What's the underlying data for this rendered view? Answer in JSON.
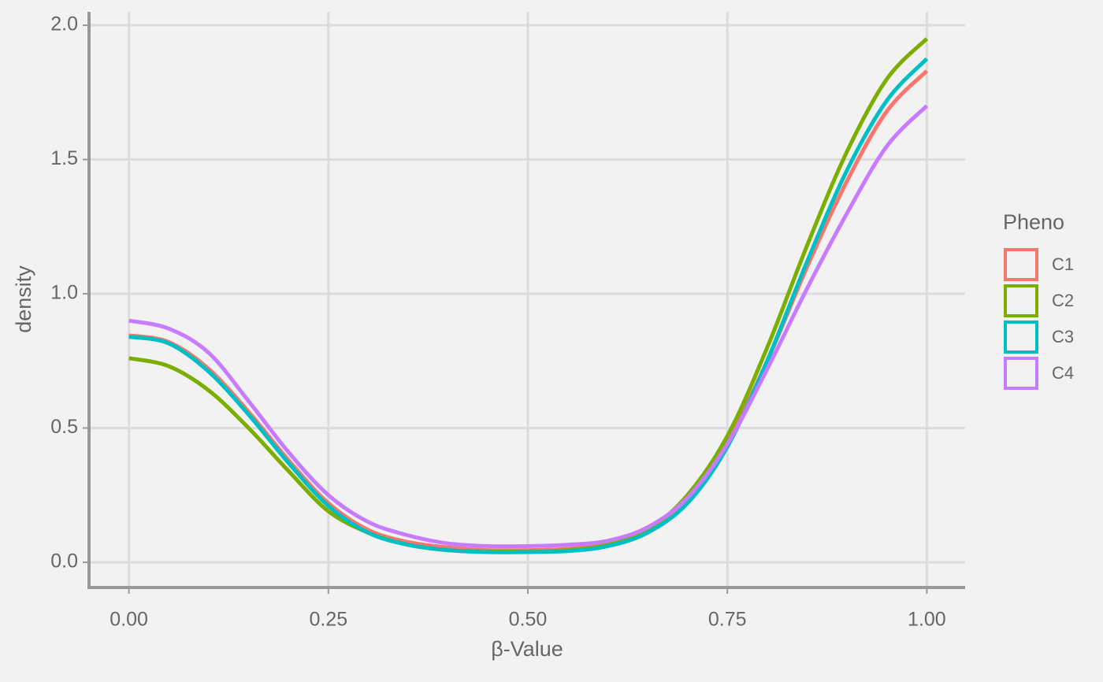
{
  "chart_data": {
    "type": "line",
    "x_label": "β-Value",
    "y_label": "density",
    "x": [
      0,
      0.05,
      0.1,
      0.15,
      0.2,
      0.25,
      0.3,
      0.35,
      0.4,
      0.45,
      0.5,
      0.55,
      0.6,
      0.65,
      0.7,
      0.75,
      0.8,
      0.85,
      0.9,
      0.95,
      1.0
    ],
    "series": [
      {
        "name": "C1",
        "color": "#f8766d",
        "values": [
          0.845,
          0.82,
          0.72,
          0.56,
          0.38,
          0.22,
          0.12,
          0.075,
          0.055,
          0.045,
          0.045,
          0.05,
          0.07,
          0.12,
          0.24,
          0.45,
          0.75,
          1.1,
          1.42,
          1.68,
          1.83
        ]
      },
      {
        "name": "C2",
        "color": "#7cae00",
        "values": [
          0.76,
          0.73,
          0.64,
          0.5,
          0.34,
          0.19,
          0.11,
          0.065,
          0.045,
          0.04,
          0.04,
          0.045,
          0.065,
          0.12,
          0.25,
          0.47,
          0.8,
          1.18,
          1.53,
          1.8,
          1.95
        ]
      },
      {
        "name": "C3",
        "color": "#00bfc4",
        "values": [
          0.84,
          0.815,
          0.71,
          0.55,
          0.37,
          0.21,
          0.11,
          0.065,
          0.045,
          0.038,
          0.038,
          0.042,
          0.06,
          0.11,
          0.22,
          0.43,
          0.75,
          1.12,
          1.46,
          1.72,
          1.875
        ]
      },
      {
        "name": "C4",
        "color": "#c77cff",
        "values": [
          0.9,
          0.87,
          0.78,
          0.6,
          0.41,
          0.25,
          0.15,
          0.1,
          0.07,
          0.06,
          0.06,
          0.065,
          0.08,
          0.13,
          0.24,
          0.44,
          0.72,
          1.02,
          1.3,
          1.55,
          1.7
        ]
      }
    ],
    "legend_title": "Pheno",
    "legend": "right",
    "grid": true,
    "xlim": [
      -0.05,
      1.048
    ],
    "xticks": [
      {
        "value": 0,
        "label": "0.00"
      },
      {
        "value": 0.25,
        "label": "0.25"
      },
      {
        "value": 0.5,
        "label": "0.50"
      },
      {
        "value": 0.75,
        "label": "0.75"
      },
      {
        "value": 1,
        "label": "1.00"
      }
    ],
    "ylim": [
      -0.094,
      2.05
    ],
    "yticks": [
      {
        "value": 0,
        "label": "0.0"
      },
      {
        "value": 0.5,
        "label": "0.5"
      },
      {
        "value": 1,
        "label": "1.0"
      },
      {
        "value": 1.5,
        "label": "1.5"
      },
      {
        "value": 2,
        "label": "2.0"
      }
    ]
  }
}
